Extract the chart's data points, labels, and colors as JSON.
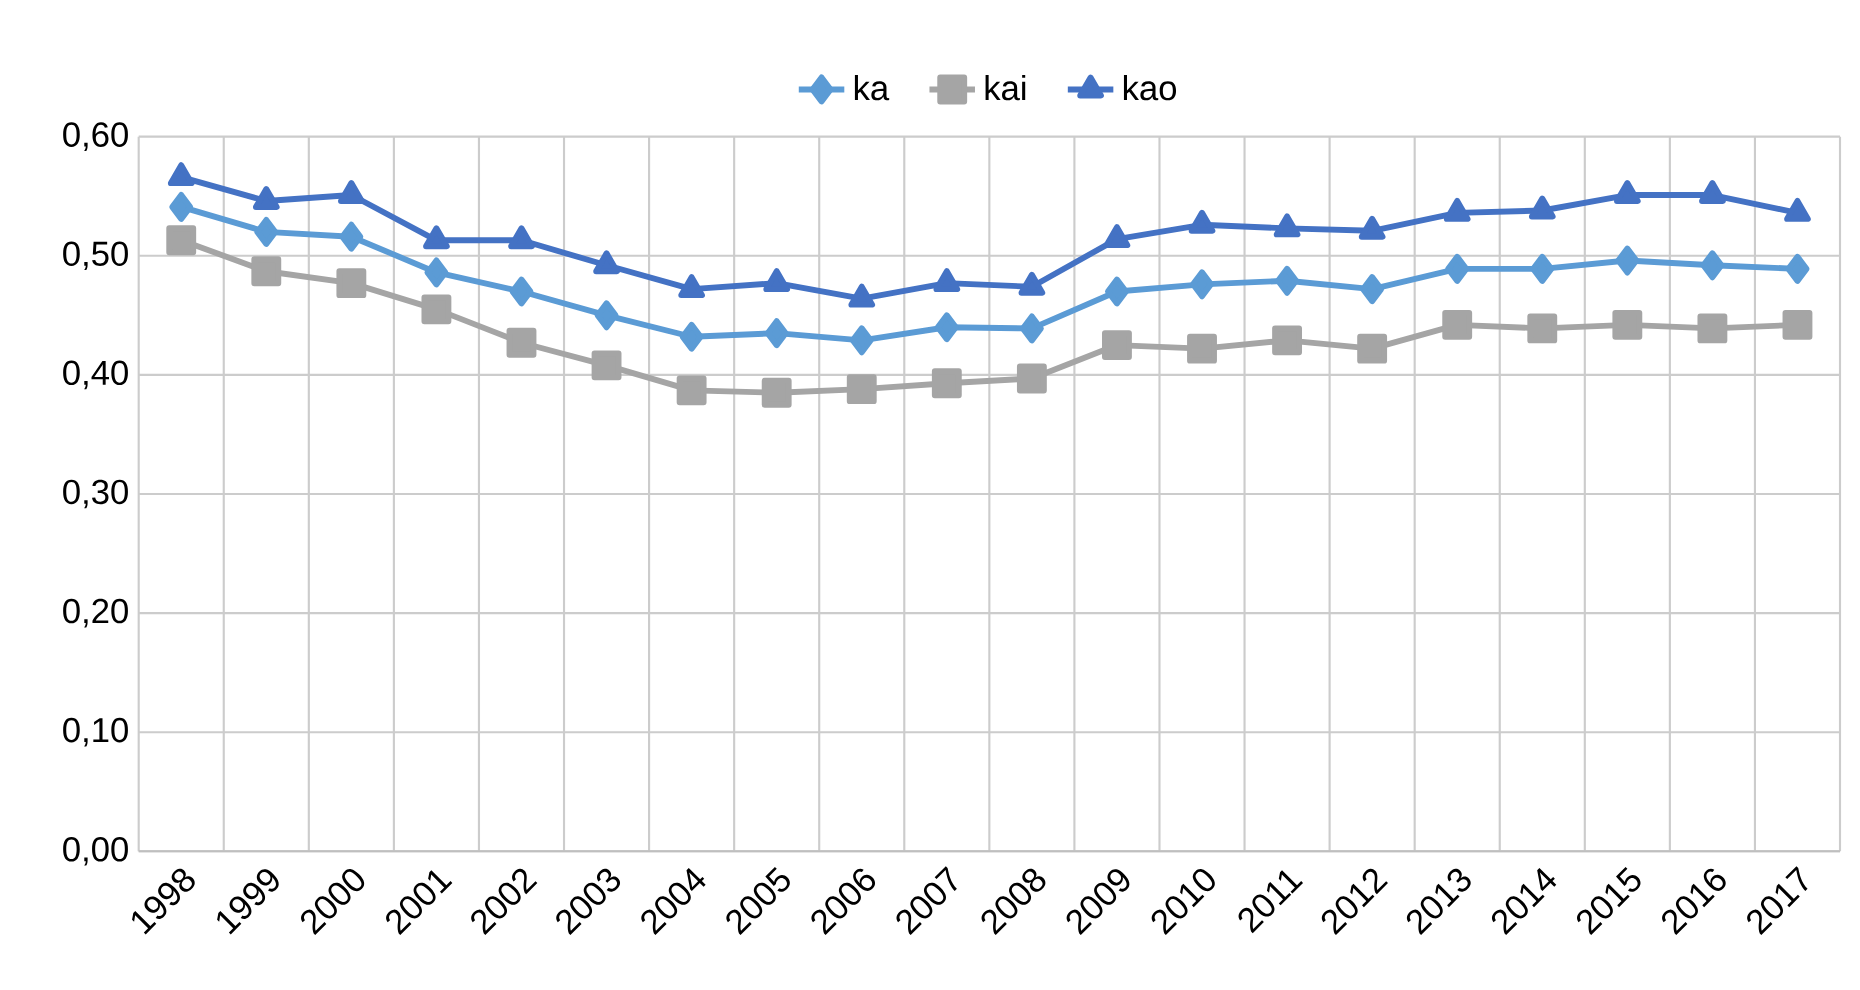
{
  "chart_data": {
    "type": "line",
    "categories": [
      "1998",
      "1999",
      "2000",
      "2001",
      "2002",
      "2003",
      "2004",
      "2005",
      "2006",
      "2007",
      "2008",
      "2009",
      "2010",
      "2011",
      "2012",
      "2013",
      "2014",
      "2015",
      "2016",
      "2017"
    ],
    "series": [
      {
        "name": "ka",
        "color": "#5b9bd5",
        "marker": "diamond",
        "values": [
          0.541,
          0.52,
          0.516,
          0.486,
          0.47,
          0.45,
          0.432,
          0.435,
          0.429,
          0.44,
          0.439,
          0.47,
          0.476,
          0.479,
          0.472,
          0.489,
          0.489,
          0.496,
          0.492,
          0.489
        ]
      },
      {
        "name": "kai",
        "color": "#a5a5a5",
        "marker": "square",
        "values": [
          0.513,
          0.487,
          0.477,
          0.455,
          0.427,
          0.408,
          0.387,
          0.385,
          0.388,
          0.393,
          0.397,
          0.425,
          0.422,
          0.429,
          0.422,
          0.442,
          0.439,
          0.442,
          0.439,
          0.442
        ]
      },
      {
        "name": "kao",
        "color": "#4472c4",
        "marker": "triangle",
        "values": [
          0.566,
          0.546,
          0.551,
          0.513,
          0.513,
          0.492,
          0.472,
          0.477,
          0.464,
          0.477,
          0.474,
          0.514,
          0.526,
          0.523,
          0.521,
          0.536,
          0.538,
          0.551,
          0.551,
          0.536
        ]
      }
    ],
    "ylim": [
      0,
      0.6
    ],
    "yticks": [
      {
        "value": 0,
        "label": "0,00"
      },
      {
        "value": 0.1,
        "label": "0,10"
      },
      {
        "value": 0.2,
        "label": "0,20"
      },
      {
        "value": 0.3,
        "label": "0,30"
      },
      {
        "value": 0.4,
        "label": "0,40"
      },
      {
        "value": 0.5,
        "label": "0,50"
      },
      {
        "value": 0.6,
        "label": "0,60"
      }
    ],
    "grid": true,
    "legend": "top",
    "line_style": "solid"
  }
}
